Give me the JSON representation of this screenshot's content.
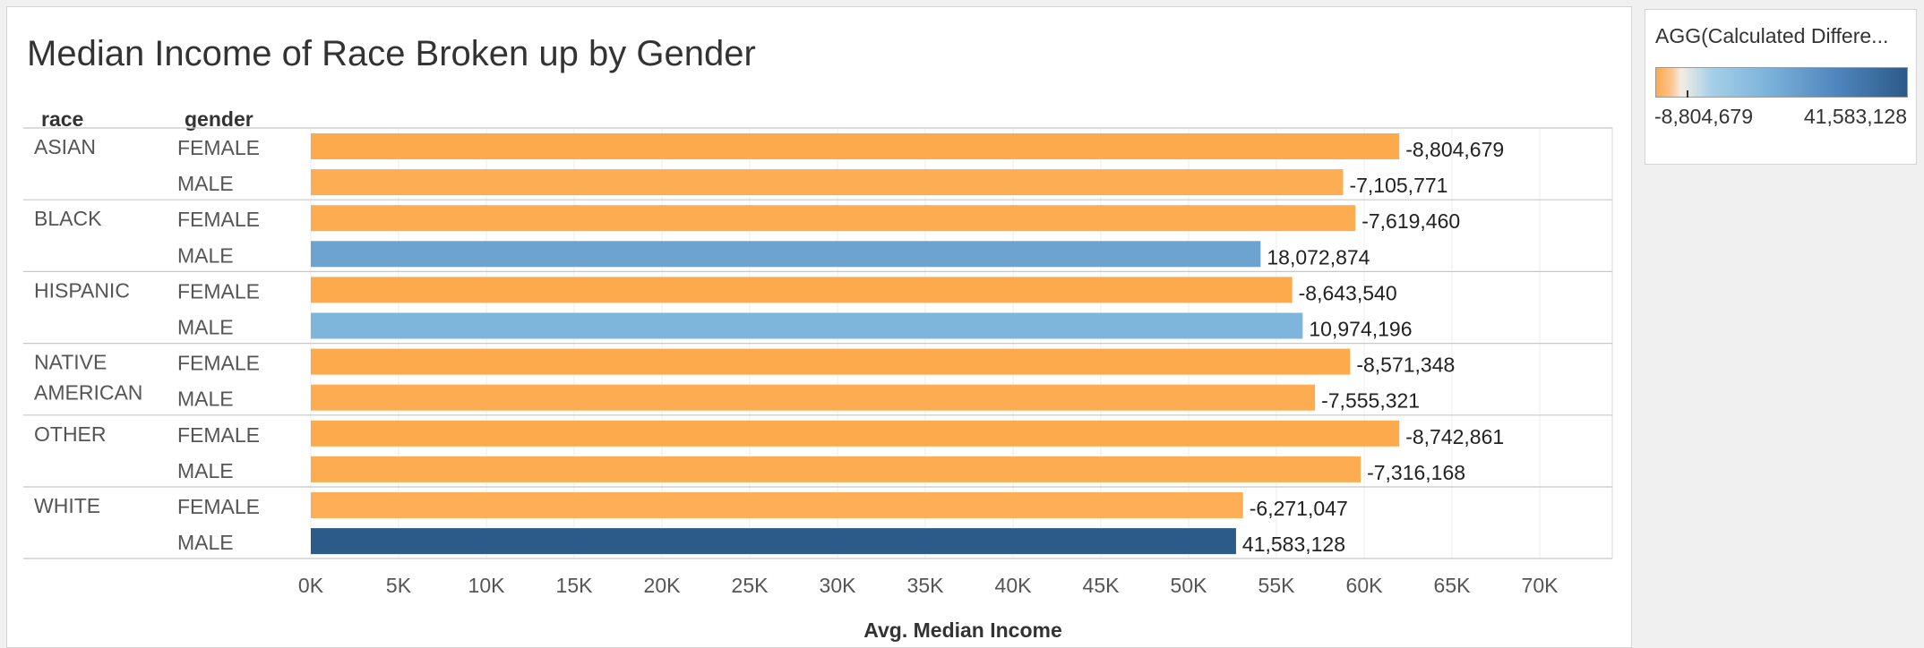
{
  "chart_data": {
    "type": "bar",
    "orientation": "horizontal",
    "title": "Median Income of Race Broken up by Gender",
    "row_headers": [
      "race",
      "gender"
    ],
    "xlabel": "Avg. Median Income",
    "xlim": [
      0,
      72000
    ],
    "xticks": [
      0,
      5000,
      10000,
      15000,
      20000,
      25000,
      30000,
      35000,
      40000,
      45000,
      50000,
      55000,
      60000,
      65000,
      70000
    ],
    "xtick_labels": [
      "0K",
      "5K",
      "10K",
      "15K",
      "20K",
      "25K",
      "30K",
      "35K",
      "40K",
      "45K",
      "50K",
      "55K",
      "60K",
      "65K",
      "70K"
    ],
    "grid": true,
    "groups": [
      {
        "race": "ASIAN",
        "rows": [
          {
            "gender": "FEMALE",
            "value": 62000,
            "label": "-8,804,679",
            "color_value": -8804679
          },
          {
            "gender": "MALE",
            "value": 58800,
            "label": "-7,105,771",
            "color_value": -7105771
          }
        ]
      },
      {
        "race": "BLACK",
        "rows": [
          {
            "gender": "FEMALE",
            "value": 59500,
            "label": "-7,619,460",
            "color_value": -7619460
          },
          {
            "gender": "MALE",
            "value": 54100,
            "label": "18,072,874",
            "color_value": 18072874
          }
        ]
      },
      {
        "race": "HISPANIC",
        "rows": [
          {
            "gender": "FEMALE",
            "value": 55900,
            "label": "-8,643,540",
            "color_value": -8643540
          },
          {
            "gender": "MALE",
            "value": 56500,
            "label": "10,974,196",
            "color_value": 10974196
          }
        ]
      },
      {
        "race": "NATIVE AMERICAN",
        "race_lines": [
          "NATIVE",
          "AMERICAN"
        ],
        "rows": [
          {
            "gender": "FEMALE",
            "value": 59200,
            "label": "-8,571,348",
            "color_value": -8571348
          },
          {
            "gender": "MALE",
            "value": 57200,
            "label": "-7,555,321",
            "color_value": -7555321
          }
        ]
      },
      {
        "race": "OTHER",
        "rows": [
          {
            "gender": "FEMALE",
            "value": 62000,
            "label": "-8,742,861",
            "color_value": -8742861
          },
          {
            "gender": "MALE",
            "value": 59800,
            "label": "-7,316,168",
            "color_value": -7316168
          }
        ]
      },
      {
        "race": "WHITE",
        "rows": [
          {
            "gender": "FEMALE",
            "value": 53100,
            "label": "-6,271,047",
            "color_value": -6271047
          },
          {
            "gender": "MALE",
            "value": 52700,
            "label": "41,583,128",
            "color_value": 41583128
          }
        ]
      }
    ],
    "color_legend": {
      "title": "AGG(Calculated Differe...",
      "min": -8804679,
      "max": 41583128,
      "min_label": "-8,804,679",
      "max_label": "41,583,128",
      "ramp_colors": [
        "#fdaa4c",
        "#f2eee4",
        "#7bb2da",
        "#2c5a89"
      ]
    }
  }
}
